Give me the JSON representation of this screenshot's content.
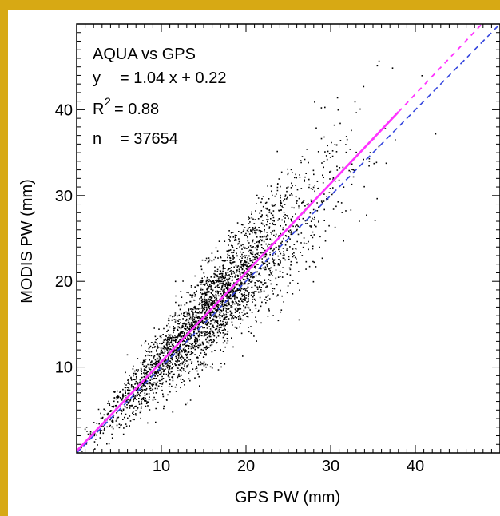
{
  "chart_data": {
    "type": "scatter",
    "xlabel": "GPS PW (mm)",
    "ylabel": "MODIS PW (mm)",
    "xlim": [
      0,
      50
    ],
    "ylim": [
      0,
      50
    ],
    "x_ticks": [
      10,
      20,
      30,
      40
    ],
    "y_ticks": [
      10,
      20,
      30,
      40
    ],
    "grid": false,
    "annotation": {
      "title": "AQUA vs GPS",
      "equation_label": "y",
      "equation": "= 1.04 x + 0.22",
      "r2_label": "R",
      "r2_sup": "2",
      "r2_value": "= 0.88",
      "n_label": "n",
      "n_value": "= 37654"
    },
    "regression": {
      "slope": 1.04,
      "intercept": 0.22,
      "color": "#ff33ff"
    },
    "one_to_one": {
      "slope": 1.0,
      "intercept": 0.0,
      "color": "#3344dd",
      "style": "dashed"
    },
    "points_color": "#000000",
    "n_points": 37654
  }
}
